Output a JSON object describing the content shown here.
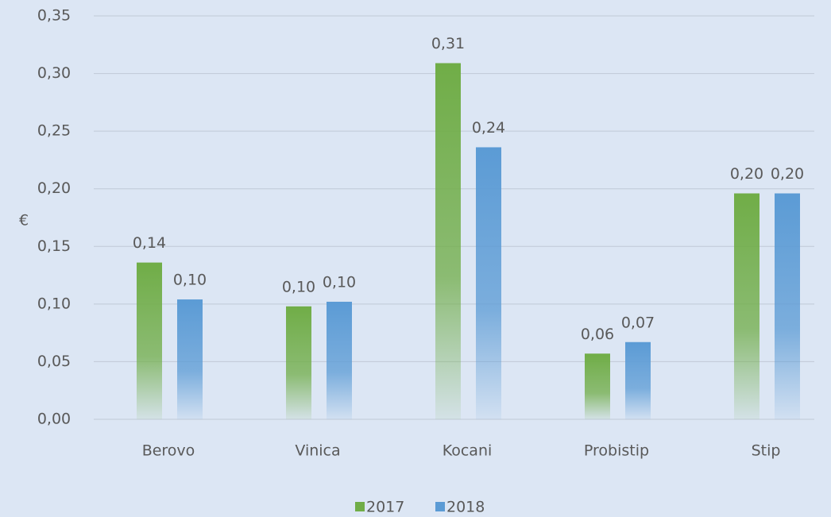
{
  "chart_data": {
    "type": "bar",
    "categories": [
      "Berovo",
      "Vinica",
      "Kocani",
      "Probistip",
      "Stip"
    ],
    "series": [
      {
        "name": "2017",
        "color": "#70ad47",
        "values": [
          0.136,
          0.098,
          0.309,
          0.057,
          0.196
        ],
        "value_labels": [
          "0,14",
          "0,10",
          "0,31",
          "0,06",
          "0,20"
        ]
      },
      {
        "name": "2018",
        "color": "#5b9bd5",
        "values": [
          0.104,
          0.102,
          0.236,
          0.067,
          0.196
        ],
        "value_labels": [
          "0,10",
          "0,10",
          "0,24",
          "0,07",
          "0,20"
        ]
      }
    ],
    "y_label": "€",
    "ylim": [
      0,
      0.35
    ],
    "yticks": [
      {
        "value": 0,
        "label": "0,00"
      },
      {
        "value": 0.05,
        "label": "0,05"
      },
      {
        "value": 0.1,
        "label": "0,10"
      },
      {
        "value": 0.15,
        "label": "0,15"
      },
      {
        "value": 0.2,
        "label": "0,20"
      },
      {
        "value": 0.25,
        "label": "0,25"
      },
      {
        "value": 0.3,
        "label": "0,30"
      },
      {
        "value": 0.35,
        "label": "0,35"
      }
    ],
    "grid": true,
    "legend": "bottom"
  }
}
